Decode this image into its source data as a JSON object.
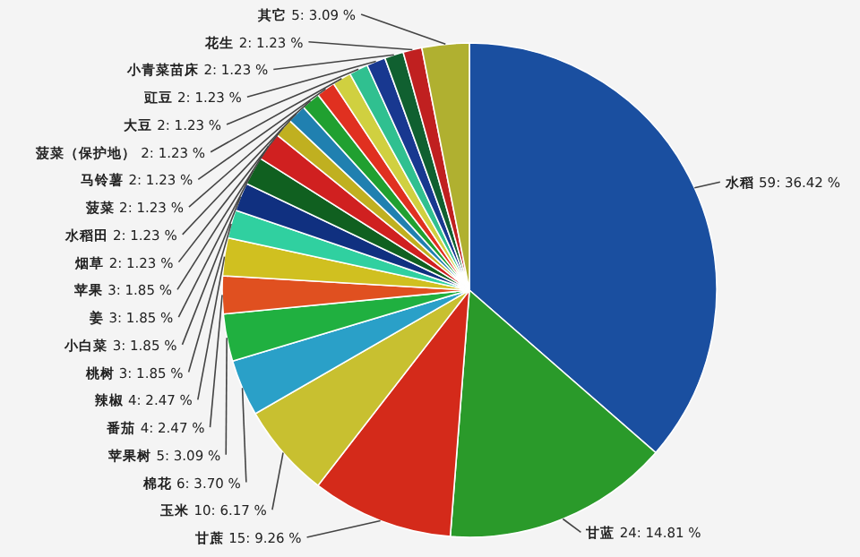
{
  "chart_data": {
    "type": "pie",
    "categories": [
      "水稻",
      "甘蓝",
      "甘蔗",
      "玉米",
      "棉花",
      "苹果树",
      "番茄",
      "辣椒",
      "桃树",
      "小白菜",
      "姜",
      "苹果",
      "烟草",
      "水稻田",
      "菠菜",
      "马铃薯",
      "菠菜（保护地）",
      "大豆",
      "豇豆",
      "小青菜苗床",
      "花生",
      "其它"
    ],
    "values": [
      59,
      24,
      15,
      10,
      6,
      5,
      4,
      4,
      3,
      3,
      3,
      3,
      2,
      2,
      2,
      2,
      2,
      2,
      2,
      2,
      2,
      5
    ],
    "value_labels": [
      "59: 36.42 %",
      "24: 14.81 %",
      "15: 9.26 %",
      "10: 6.17 %",
      "6: 3.70 %",
      "5: 3.09 %",
      "4: 2.47 %",
      "4: 2.47 %",
      "3: 1.85 %",
      "3: 1.85 %",
      "3: 1.85 %",
      "3: 1.85 %",
      "2: 1.23 %",
      "2: 1.23 %",
      "2: 1.23 %",
      "2: 1.23 %",
      "2: 1.23 %",
      "2: 1.23 %",
      "2: 1.23 %",
      "2: 1.23 %",
      "2: 1.23 %",
      "5: 3.09 %"
    ],
    "colors": [
      "#1a4fa0",
      "#2a9a2a",
      "#d42a1a",
      "#c8c030",
      "#2aa0c8",
      "#20b040",
      "#e05020",
      "#d0c020",
      "#30d0a0",
      "#103080",
      "#106020",
      "#d02020",
      "#c0b020",
      "#2080b0",
      "#20a030",
      "#e03020",
      "#d0d040",
      "#30c090",
      "#183890",
      "#106030",
      "#c02020",
      "#b0b030"
    ]
  }
}
